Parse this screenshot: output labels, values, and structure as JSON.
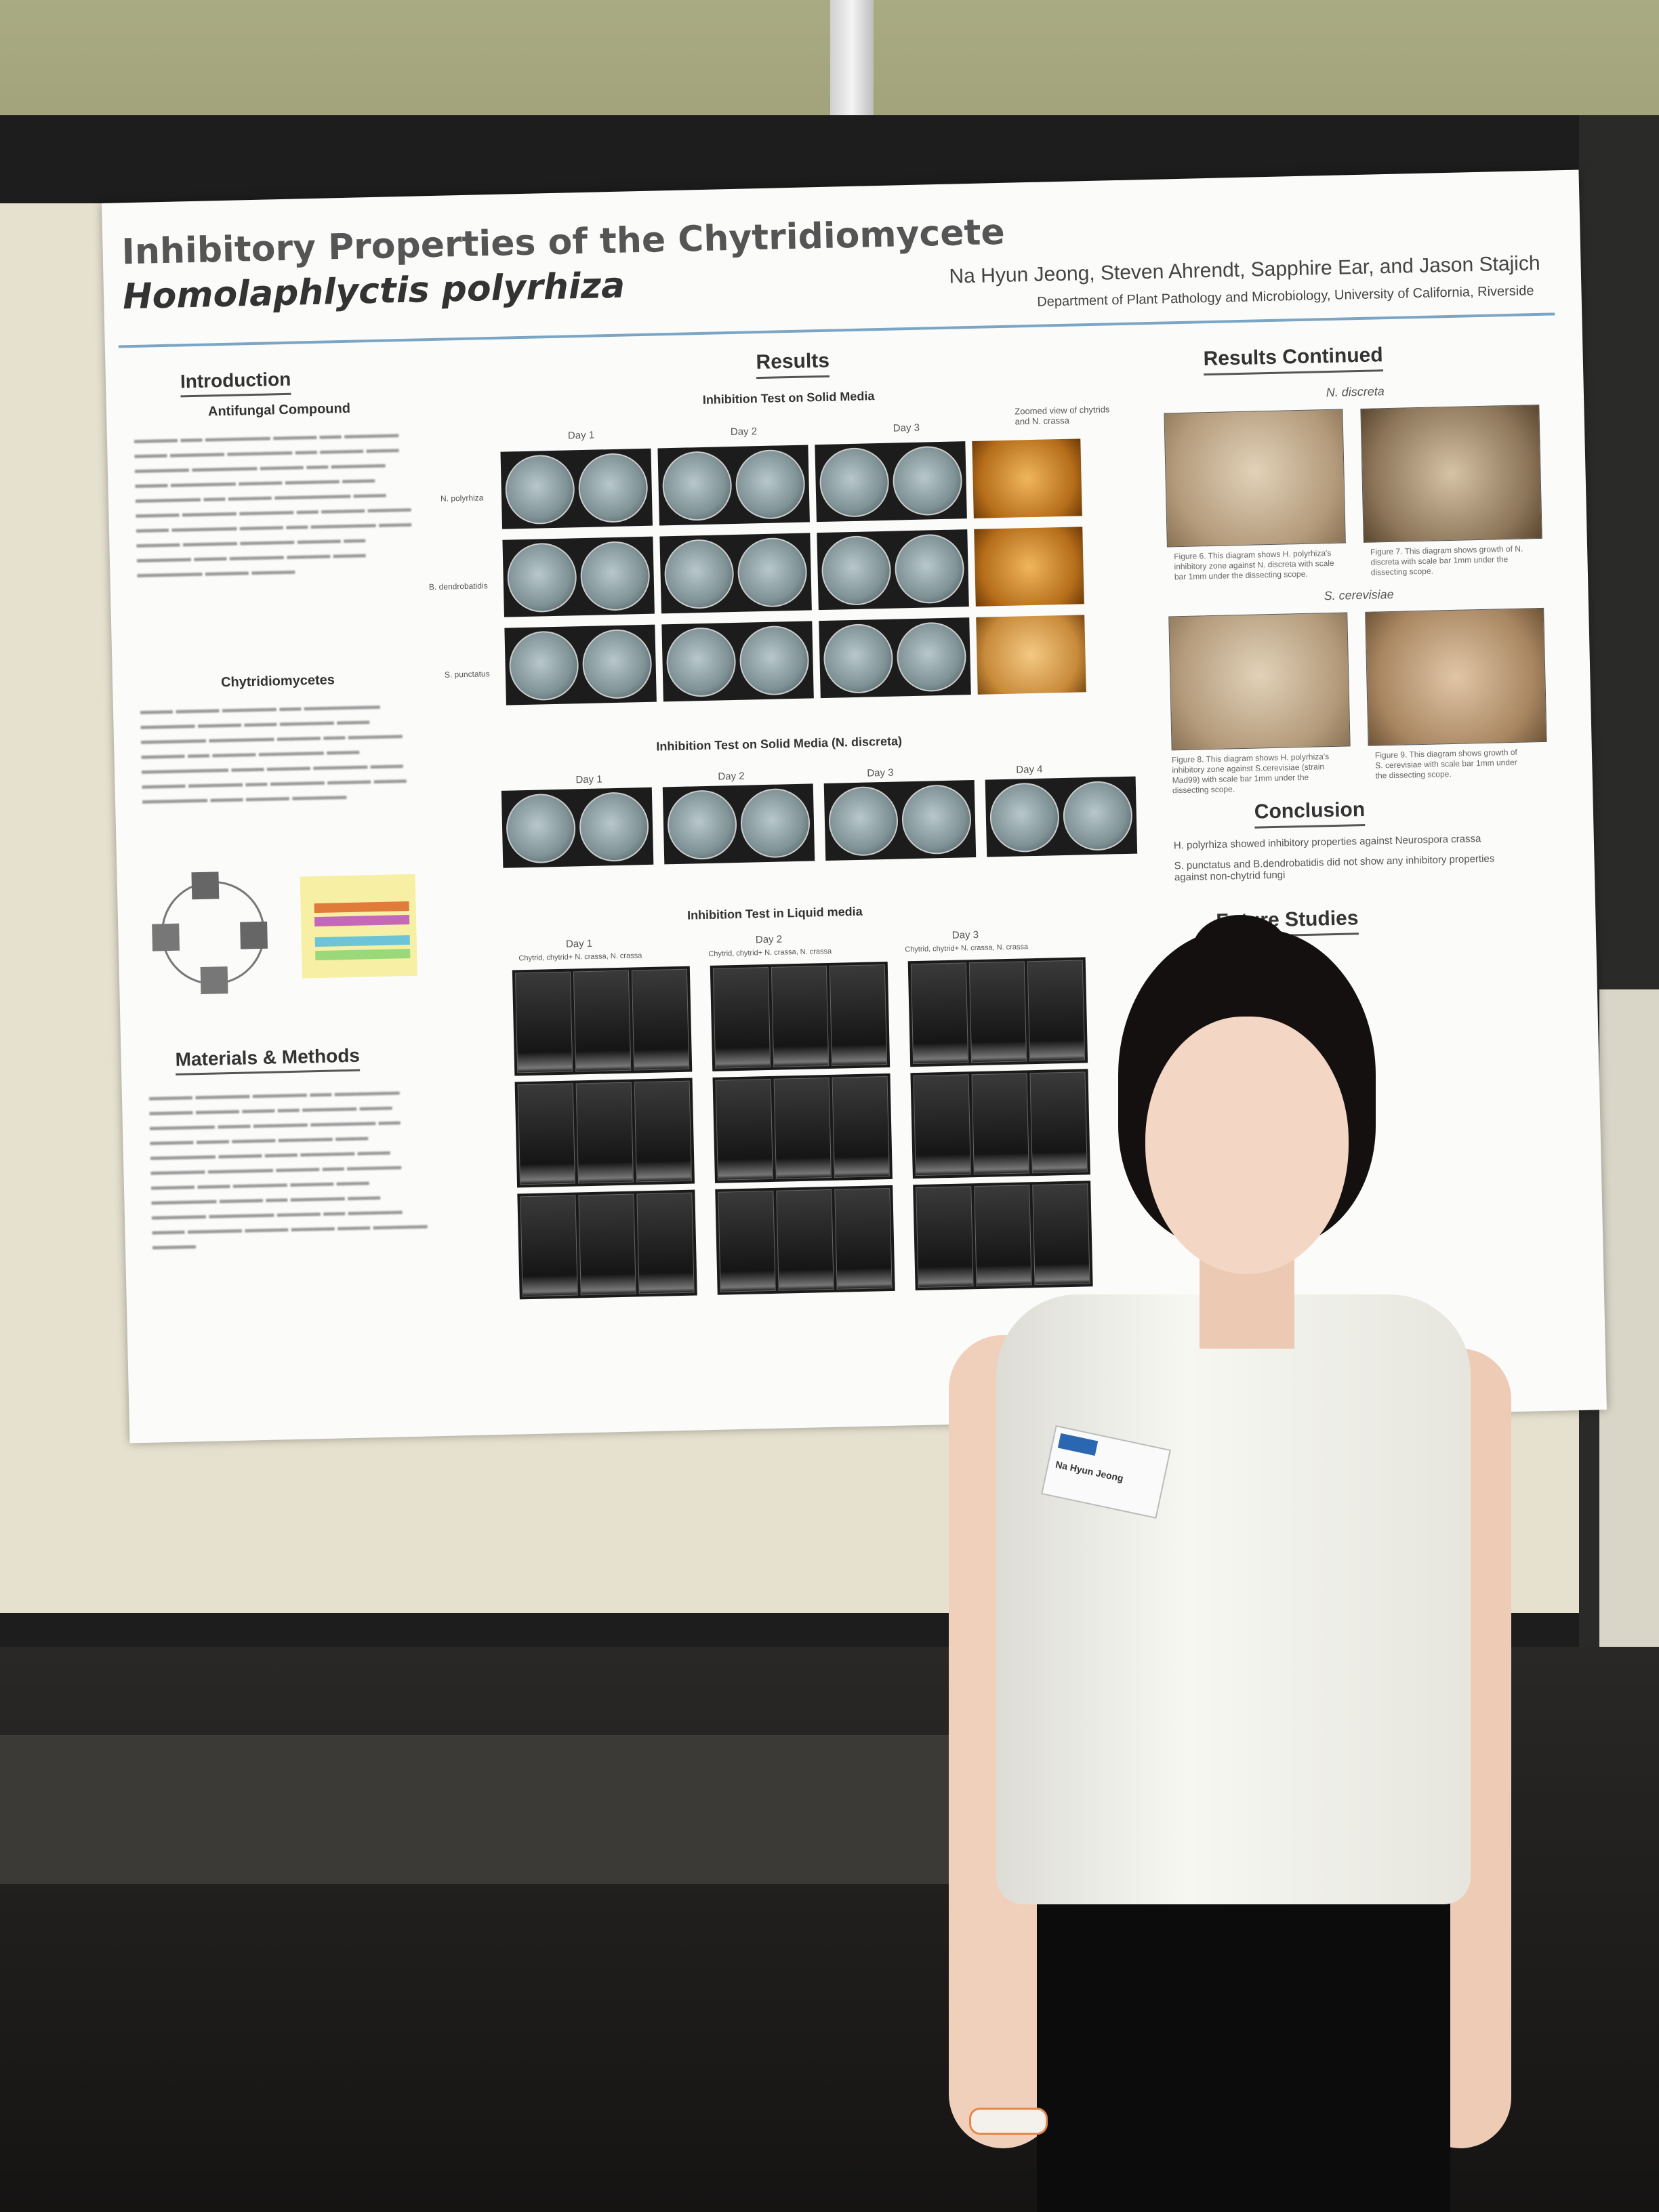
{
  "poster": {
    "title_line1": "Inhibitory Properties of the Chytridiomycete",
    "title_line2": "Homolaphlyctis polyrhiza",
    "authors": "Na Hyun Jeong, Steven Ahrendt, Sapphire Ear, and Jason Stajich",
    "department": "Department of Plant Pathology and Microbiology, University of California, Riverside",
    "left": {
      "intro_heading": "Introduction",
      "intro_sub": "Antifungal Compound",
      "chytrid_sub": "Chytridiomycetes",
      "methods_heading": "Materials & Methods"
    },
    "results": {
      "heading": "Results",
      "solid_title": "Inhibition Test on Solid Media",
      "solid_days": [
        "Day 1",
        "Day 2",
        "Day 3"
      ],
      "zoom_label": "Zoomed view of chytrids and N. crassa",
      "row_labels": [
        "N. polyrhiza",
        "B. dendrobatidis",
        "S. punctatus"
      ],
      "discreta_title": "Inhibition Test on Solid Media (N. discreta)",
      "discreta_days": [
        "Day 1",
        "Day 2",
        "Day 3",
        "Day 4"
      ],
      "liquid_title": "Inhibition Test in Liquid media",
      "liquid_days": [
        "Day 1",
        "Day 2",
        "Day 3"
      ],
      "liquid_cols": "Chytrid,   chytrid+ N. crassa,   N. crassa"
    },
    "results_continued": {
      "heading": "Results Continued",
      "n_discreta": "N. discreta",
      "s_cerevisiae": "S. cerevisiae",
      "fig6": "Figure 6. This diagram shows H. polyrhiza's inhibitory zone against N. discreta with scale bar 1mm under the dissecting scope.",
      "fig7": "Figure 7. This diagram shows growth of N. discreta with scale bar 1mm under the dissecting scope.",
      "fig8": "Figure 8. This diagram shows H. polyrhiza's inhibitory zone against S.cerevisiae (strain Mad99) with scale bar 1mm under the dissecting scope.",
      "fig9": "Figure 9. This diagram shows growth of S. cerevisiae with scale bar 1mm under the dissecting scope."
    },
    "conclusion": {
      "heading": "Conclusion",
      "point1": "H. polyrhiza showed inhibitory properties against Neurospora crassa",
      "point2": "S. punctatus and B.dendrobatidis did not show any inhibitory properties against non-chytrid fungi"
    },
    "future_heading": "Future Studies"
  },
  "badge": {
    "name": "Na Hyun Jeong"
  },
  "colors": {
    "poster_rule": "#7aa5c5",
    "wall": "#9c9c72",
    "board": "#e6e1cf"
  }
}
